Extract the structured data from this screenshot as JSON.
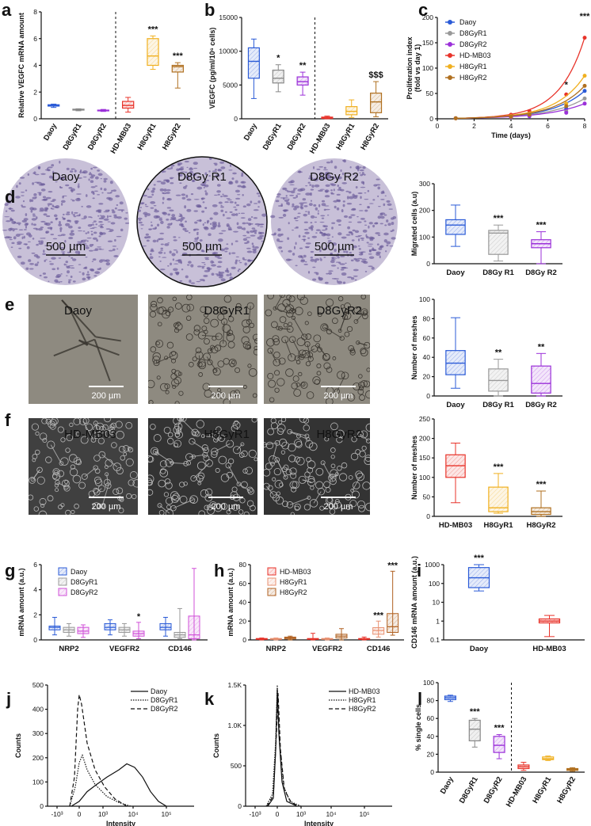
{
  "panels": {
    "a": "a",
    "b": "b",
    "c": "c",
    "d": "d",
    "e": "e",
    "f": "f",
    "g": "g",
    "h": "h",
    "i": "i",
    "j": "j",
    "k": "k",
    "l": "l"
  },
  "images": {
    "d": {
      "labels": [
        "Daoy",
        "D8Gy R1",
        "D8Gy R2"
      ],
      "scale": "500 µm",
      "colors": {
        "bg": "#c8c0d8",
        "dot": "#6a5a9a"
      }
    },
    "e": {
      "labels": [
        "Daoy",
        "D8GyR1",
        "D8GyR2"
      ],
      "scale": "200 µm",
      "colors": {
        "bg": "#8e8a80",
        "line": "#3a3630"
      }
    },
    "f": {
      "labels": [
        "HD-MB03",
        "H8GyR1",
        "H8GyR2"
      ],
      "scale": "200 µm",
      "colors": {
        "bg": "#404040",
        "line": "#b8b8b8"
      }
    }
  },
  "chart_data": [
    {
      "panel": "a",
      "type": "box",
      "ylabel": "Relative VEGFC mRNA amount",
      "ylim": [
        0,
        8
      ],
      "yticks": [
        0,
        2,
        4,
        6,
        8
      ],
      "categories": [
        "Daoy",
        "D8GyR1",
        "D8GyR2",
        "HD-MB03",
        "H8GyR1",
        "H8GyR2"
      ],
      "divider_after": 2,
      "colors": [
        "#2b5bd7",
        "#888888",
        "#9b30d9",
        "#e8332a",
        "#f0b020",
        "#b07020"
      ],
      "boxes": [
        [
          0.85,
          0.95,
          1.0,
          1.05,
          1.1
        ],
        [
          0.6,
          0.65,
          0.7,
          0.72,
          0.75
        ],
        [
          0.55,
          0.6,
          0.62,
          0.65,
          0.7
        ],
        [
          0.5,
          0.8,
          1.0,
          1.3,
          1.6
        ],
        [
          3.7,
          4.0,
          4.7,
          6.0,
          6.2
        ],
        [
          2.3,
          3.5,
          3.9,
          4.0,
          4.2
        ]
      ],
      "stars": [
        "",
        "",
        "",
        "",
        "***",
        "***"
      ]
    },
    {
      "panel": "b",
      "type": "box",
      "ylabel": "VEGFC (pg/ml/10⁶ cells)",
      "ylim": [
        0,
        15000
      ],
      "yticks": [
        0,
        5000,
        10000,
        15000
      ],
      "categories": [
        "Daoy",
        "D8GyR1",
        "D8GyR2",
        "HD-MB03",
        "H8GyR1",
        "H8GyR2"
      ],
      "divider_after": 2,
      "colors": [
        "#2b5bd7",
        "#888888",
        "#9b30d9",
        "#e8332a",
        "#f0b020",
        "#b07020"
      ],
      "boxes": [
        [
          3000,
          6000,
          8500,
          10500,
          11800
        ],
        [
          4000,
          5300,
          6000,
          7200,
          8000
        ],
        [
          3500,
          5000,
          5500,
          6200,
          6900
        ],
        [
          0,
          50,
          150,
          250,
          400
        ],
        [
          200,
          600,
          1100,
          1800,
          2800
        ],
        [
          300,
          900,
          2500,
          3800,
          5500
        ]
      ],
      "stars": [
        "",
        "*",
        "**",
        "",
        "",
        "$$$"
      ]
    },
    {
      "panel": "c",
      "type": "line",
      "ylabel": "Proliferation index\n(fold vs day 1)",
      "xlabel": "Time (days)",
      "xlim": [
        0,
        8
      ],
      "ylim": [
        0,
        200
      ],
      "xticks": [
        0,
        2,
        4,
        6,
        8
      ],
      "yticks": [
        0,
        50,
        100,
        150,
        200
      ],
      "series": [
        {
          "name": "Daoy",
          "color": "#2b5bd7",
          "x": [
            1,
            4,
            5,
            7,
            8
          ],
          "y": [
            1,
            4,
            7,
            20,
            55
          ]
        },
        {
          "name": "D8GyR1",
          "color": "#999999",
          "x": [
            1,
            4,
            5,
            7,
            8
          ],
          "y": [
            1,
            3,
            6,
            15,
            40
          ]
        },
        {
          "name": "D8GyR2",
          "color": "#9b30d9",
          "x": [
            1,
            4,
            5,
            7,
            8
          ],
          "y": [
            1,
            3,
            5,
            12,
            30
          ]
        },
        {
          "name": "HD-MB03",
          "color": "#e8332a",
          "x": [
            1,
            4,
            5,
            7,
            8
          ],
          "y": [
            1,
            8,
            15,
            48,
            160
          ]
        },
        {
          "name": "H8GyR1",
          "color": "#f0b020",
          "x": [
            1,
            4,
            5,
            7,
            8
          ],
          "y": [
            1,
            5,
            9,
            30,
            85
          ]
        },
        {
          "name": "H8GyR2",
          "color": "#b07020",
          "x": [
            1,
            4,
            5,
            7,
            8
          ],
          "y": [
            1,
            4,
            8,
            25,
            65
          ]
        }
      ],
      "stars": [
        {
          "x": 7,
          "label": "*"
        },
        {
          "x": 8,
          "label": "***"
        }
      ]
    },
    {
      "panel": "d",
      "type": "box",
      "ylabel": "Migrated cells (a.u)",
      "ylim": [
        0,
        300
      ],
      "yticks": [
        0,
        100,
        200,
        300
      ],
      "categories": [
        "Daoy",
        "D8Gy R1",
        "D8Gy R2"
      ],
      "colors": [
        "#2b5bd7",
        "#999999",
        "#9b30d9"
      ],
      "boxes": [
        [
          65,
          110,
          145,
          165,
          220
        ],
        [
          10,
          35,
          115,
          125,
          145
        ],
        [
          0,
          60,
          75,
          90,
          120
        ]
      ],
      "stars": [
        "",
        "***",
        "***"
      ]
    },
    {
      "panel": "e",
      "type": "box",
      "ylabel": "Number of meshes",
      "ylim": [
        0,
        100
      ],
      "yticks": [
        0,
        20,
        40,
        60,
        80,
        100
      ],
      "categories": [
        "Daoy",
        "D8Gy R1",
        "D8Gy R2"
      ],
      "colors": [
        "#2b5bd7",
        "#999999",
        "#9b30d9"
      ],
      "boxes": [
        [
          8,
          22,
          34,
          47,
          81
        ],
        [
          0,
          5,
          16,
          28,
          38
        ],
        [
          0,
          3,
          13,
          31,
          44
        ]
      ],
      "stars": [
        "",
        "**",
        "**"
      ]
    },
    {
      "panel": "f",
      "type": "box",
      "ylabel": "Number of meshes",
      "ylim": [
        0,
        250
      ],
      "yticks": [
        0,
        50,
        100,
        150,
        200,
        250
      ],
      "categories": [
        "HD-MB03",
        "H8GyR1",
        "H8GyR2"
      ],
      "colors": [
        "#e8332a",
        "#f0b020",
        "#b07020"
      ],
      "boxes": [
        [
          35,
          100,
          130,
          158,
          188
        ],
        [
          8,
          12,
          22,
          75,
          110
        ],
        [
          0,
          5,
          12,
          22,
          65
        ]
      ],
      "stars": [
        "",
        "***",
        "***"
      ]
    },
    {
      "panel": "g",
      "type": "groupbox",
      "ylabel": "mRNA amount (a.u.)",
      "ylim": [
        0,
        6
      ],
      "yticks": [
        0,
        2,
        4,
        6
      ],
      "categories": [
        "NRP2",
        "VEGFR2",
        "CD146"
      ],
      "series": [
        "Daoy",
        "D8GyR1",
        "D8GyR2"
      ],
      "colors": [
        "#2b5bd7",
        "#999999",
        "#d050d8"
      ],
      "boxes": [
        [
          [
            0.4,
            0.8,
            1.0,
            1.1,
            1.8
          ],
          [
            0.3,
            0.6,
            0.8,
            1.0,
            1.3
          ],
          [
            0.2,
            0.5,
            0.7,
            1.0,
            1.2
          ]
        ],
        [
          [
            0.4,
            0.8,
            1.0,
            1.3,
            1.6
          ],
          [
            0.3,
            0.6,
            0.8,
            1.0,
            1.3
          ],
          [
            0.1,
            0.3,
            0.5,
            0.7,
            1.4
          ]
        ],
        [
          [
            0.3,
            0.8,
            1.0,
            1.3,
            1.8
          ],
          [
            0.1,
            0.2,
            0.4,
            0.6,
            2.5
          ],
          [
            0.0,
            0.1,
            0.4,
            1.9,
            5.7
          ]
        ]
      ],
      "stars": [
        [
          "",
          "",
          ""
        ],
        [
          "",
          "",
          "*"
        ],
        [
          "",
          "",
          ""
        ]
      ]
    },
    {
      "panel": "h",
      "type": "groupbox",
      "ylabel": "mRNA amount (a.u.)",
      "ylim": [
        0,
        80
      ],
      "yticks": [
        0,
        20,
        40,
        60,
        80
      ],
      "categories": [
        "NRP2",
        "VEGFR2",
        "CD146"
      ],
      "series": [
        "HD-MB03",
        "H8GyR1",
        "H8GyR2"
      ],
      "colors": [
        "#e8332a",
        "#e89070",
        "#b06020"
      ],
      "boxes": [
        [
          [
            0,
            0.5,
            1,
            1.5,
            2
          ],
          [
            0,
            0.5,
            1,
            1.5,
            2
          ],
          [
            0,
            1,
            2,
            3,
            4
          ]
        ],
        [
          [
            0,
            0.5,
            1,
            1.5,
            7
          ],
          [
            0,
            0.5,
            1,
            1.5,
            2
          ],
          [
            0,
            2,
            4,
            6,
            12
          ]
        ],
        [
          [
            0,
            0.5,
            1,
            1.5,
            3
          ],
          [
            3,
            6,
            10,
            13,
            20
          ],
          [
            5,
            8,
            14,
            28,
            73
          ]
        ]
      ],
      "stars": [
        [
          "",
          "",
          ""
        ],
        [
          "",
          "",
          ""
        ],
        [
          "",
          "***",
          "***"
        ]
      ]
    },
    {
      "panel": "i",
      "type": "box",
      "scale": "log",
      "ylabel": "CD146 mRNA amount (a.u.)",
      "ylim": [
        0.1,
        1000
      ],
      "yticks": [
        0.1,
        1,
        10,
        100,
        1000
      ],
      "categories": [
        "Daoy",
        "HD-MB03"
      ],
      "colors": [
        "#2b5bd7",
        "#e8332a"
      ],
      "boxes": [
        [
          40,
          60,
          200,
          700,
          1000
        ],
        [
          0.15,
          0.8,
          1.0,
          1.3,
          2.0
        ]
      ],
      "stars": [
        "***",
        ""
      ]
    },
    {
      "panel": "j",
      "type": "line",
      "ylabel": "Counts",
      "xlabel": "Intensity",
      "ylim": [
        0,
        500
      ],
      "yticks": [
        0,
        100,
        200,
        300,
        400,
        500
      ],
      "xticks_labels": [
        "-10³",
        "0",
        "10³",
        "10⁴",
        "10⁵"
      ],
      "series": [
        {
          "name": "Daoy",
          "style": "solid"
        },
        {
          "name": "D8GyR1",
          "style": "dotted"
        },
        {
          "name": "D8GyR2",
          "style": "dashed"
        }
      ]
    },
    {
      "panel": "k",
      "type": "line",
      "ylabel": "Counts",
      "xlabel": "Intensity",
      "yticks_labels": [
        "0",
        "500",
        "1.0K",
        "1.5K"
      ],
      "xticks_labels": [
        "-10³",
        "0",
        "10³",
        "10⁴",
        "10⁵"
      ],
      "series": [
        {
          "name": "HD-MB03",
          "style": "solid"
        },
        {
          "name": "H8GyR1",
          "style": "dotted"
        },
        {
          "name": "H8GyR2",
          "style": "dashed"
        }
      ]
    },
    {
      "panel": "l",
      "type": "box",
      "ylabel": "% single cells",
      "ylim": [
        0,
        100
      ],
      "yticks": [
        0,
        20,
        40,
        60,
        80,
        100
      ],
      "categories": [
        "Daoy",
        "D8GyR1",
        "D8GyR2",
        "HD-MB03",
        "H8GyR1",
        "H8GyR2"
      ],
      "divider_after": 2,
      "colors": [
        "#2b5bd7",
        "#888888",
        "#9b30d9",
        "#e8332a",
        "#f0b020",
        "#b07020"
      ],
      "boxes": [
        [
          79,
          81,
          83,
          85,
          86
        ],
        [
          28,
          35,
          48,
          58,
          60
        ],
        [
          15,
          22,
          30,
          40,
          42
        ],
        [
          2,
          4,
          6,
          8,
          11
        ],
        [
          13,
          14,
          15,
          17,
          18
        ],
        [
          1,
          2,
          3,
          4,
          5
        ]
      ],
      "stars": [
        "",
        "***",
        "***",
        "",
        "",
        ""
      ]
    }
  ]
}
